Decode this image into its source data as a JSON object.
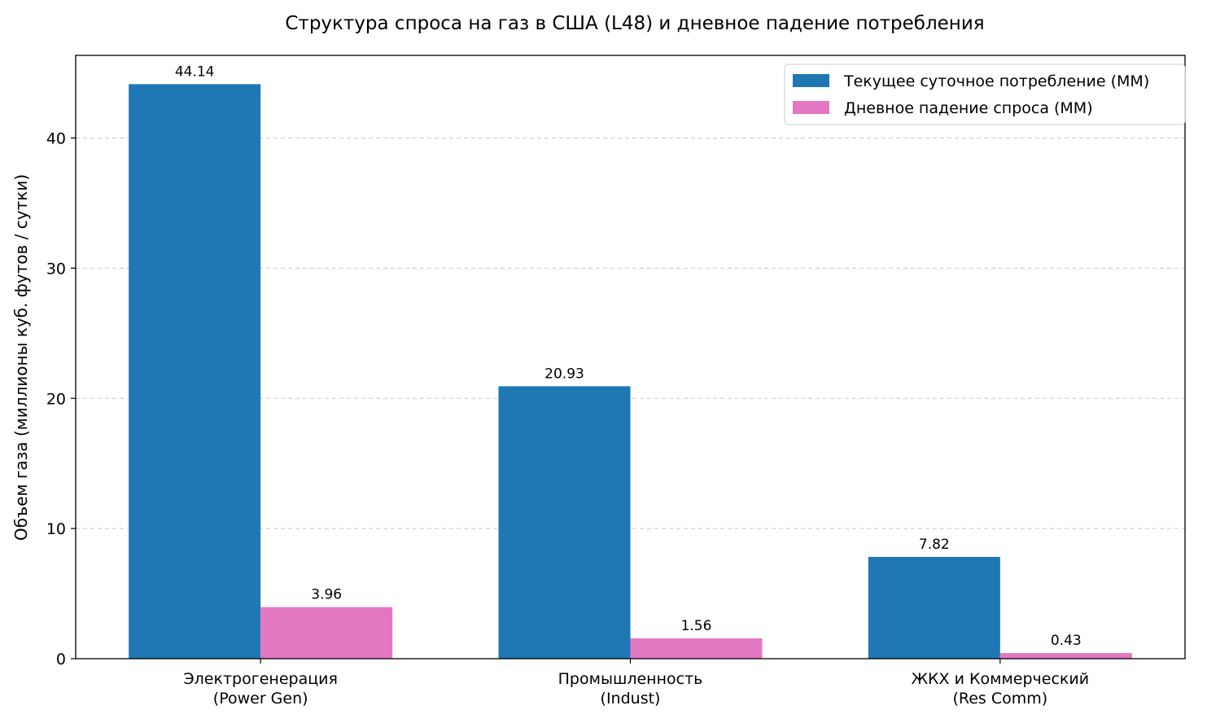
{
  "chart_data": {
    "type": "bar",
    "title": "Структура спроса на газ в США (L48) и дневное падение потребления",
    "xlabel": "",
    "ylabel": "Объем газа (миллионы куб. футов / сутки)",
    "categories": [
      [
        "Электрогенерация",
        "(Power Gen)"
      ],
      [
        "Промышленность",
        "(Indust)"
      ],
      [
        "ЖКХ и Коммерческий",
        "(Res Comm)"
      ]
    ],
    "series": [
      {
        "name": "Текущее суточное потребление (MM)",
        "values": [
          44.14,
          20.93,
          7.82
        ],
        "labels": [
          "44.14",
          "20.93",
          "7.82"
        ],
        "color": "#1f77b4"
      },
      {
        "name": "Дневное падение спроса (MM)",
        "values": [
          3.96,
          1.56,
          0.43
        ],
        "labels": [
          "3.96",
          "1.56",
          "0.43"
        ],
        "color": "#e377c2"
      }
    ],
    "ylim": [
      0,
      46.35
    ],
    "yticks": [
      0,
      10,
      20,
      30,
      40
    ],
    "grid": "y-dashed",
    "legend_position": "top-right"
  }
}
